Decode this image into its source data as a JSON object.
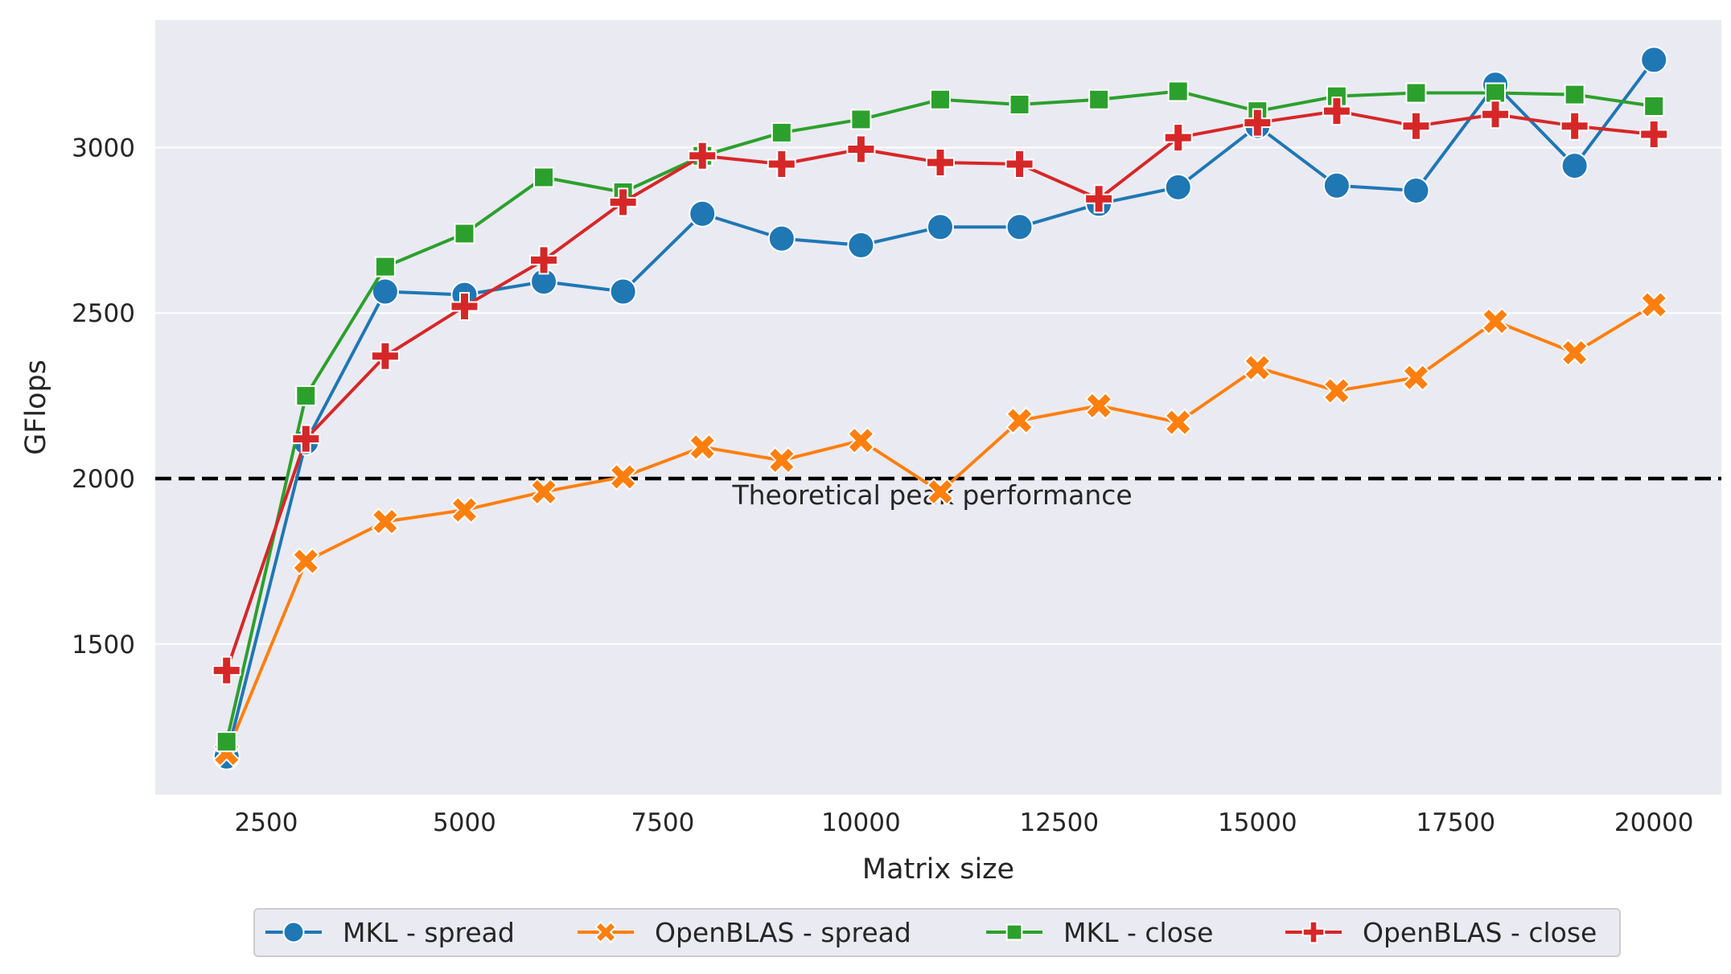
{
  "chart_data": {
    "type": "line",
    "title": "",
    "xlabel": "Matrix size",
    "ylabel": "GFlops",
    "xlim": [
      1100,
      20850
    ],
    "ylim": [
      1045,
      3385
    ],
    "xticks": [
      2500,
      5000,
      7500,
      10000,
      12500,
      15000,
      17500,
      20000
    ],
    "yticks": [
      1500,
      2000,
      2500,
      3000
    ],
    "grid": true,
    "legend_position": "bottom-center, outside",
    "x": [
      2000,
      3000,
      4000,
      5000,
      6000,
      7000,
      8000,
      9000,
      10000,
      11000,
      12000,
      13000,
      14000,
      15000,
      16000,
      17000,
      18000,
      19000,
      20000
    ],
    "series": [
      {
        "name": "MKL - spread",
        "color": "#1f77b4",
        "marker": "circle",
        "values": [
          1160,
          2110,
          2565,
          2555,
          2595,
          2565,
          2800,
          2725,
          2705,
          2760,
          2760,
          2830,
          2880,
          3065,
          2885,
          2870,
          3190,
          2945,
          3265
        ]
      },
      {
        "name": "OpenBLAS - spread",
        "color": "#ff7f0e",
        "marker": "x",
        "values": [
          1170,
          1750,
          1870,
          1905,
          1960,
          2005,
          2095,
          2055,
          2115,
          1960,
          2175,
          2220,
          2170,
          2335,
          2265,
          2305,
          2475,
          2380,
          2525
        ]
      },
      {
        "name": "MKL - close",
        "color": "#2ca02c",
        "marker": "square",
        "values": [
          1205,
          2250,
          2640,
          2740,
          2910,
          2865,
          2975,
          3045,
          3085,
          3145,
          3130,
          3145,
          3170,
          3110,
          3155,
          3165,
          3165,
          3160,
          3125
        ]
      },
      {
        "name": "OpenBLAS - close",
        "color": "#d62728",
        "marker": "plus",
        "values": [
          1420,
          2120,
          2370,
          2520,
          2660,
          2835,
          2975,
          2950,
          2995,
          2955,
          2950,
          2845,
          3030,
          3075,
          3110,
          3065,
          3100,
          3065,
          3040
        ]
      }
    ],
    "reference_lines": [
      {
        "y": 2000,
        "style": "dashed",
        "color": "#000000",
        "label": "Theoretical peak performance"
      }
    ]
  },
  "colors": {
    "plot_background": "#eaeaf2",
    "grid": "#ffffff",
    "text": "#262626"
  }
}
